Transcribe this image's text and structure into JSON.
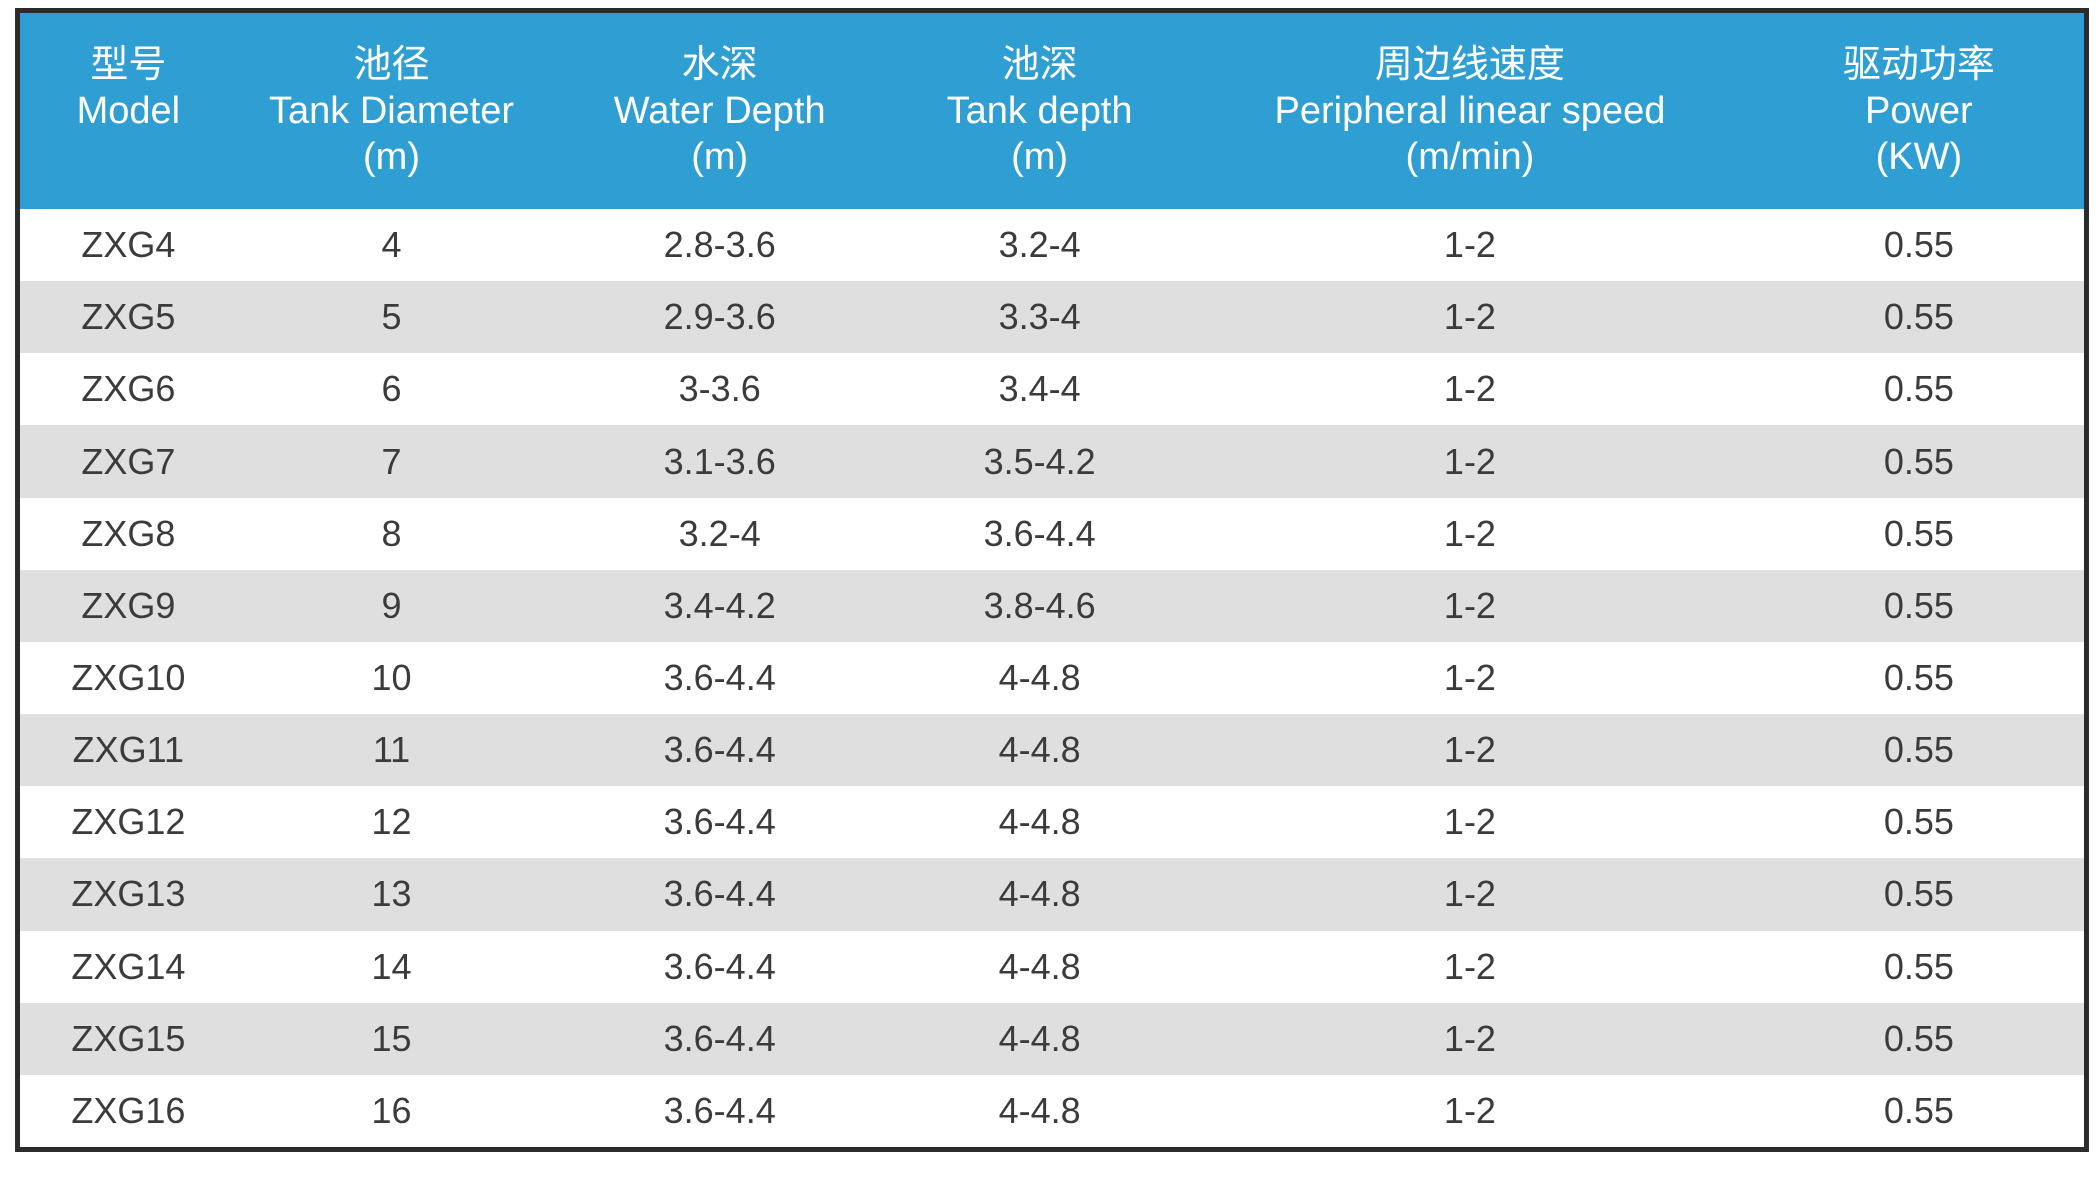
{
  "colors": {
    "page_bg": "#FFFFFF",
    "header_bg": "#2F9FD3",
    "header_text": "#FFFFFF",
    "row_bg": "#FFFFFF",
    "row_alt_bg": "#DFDFDF",
    "body_text": "#3B3B3B",
    "frame_border": "#2B2B2B"
  },
  "table": {
    "columns": [
      {
        "id": "model",
        "zh": "型号",
        "en": "Model",
        "unit": ""
      },
      {
        "id": "tank-diameter",
        "zh": "池径",
        "en": "Tank Diameter",
        "unit": "(m)"
      },
      {
        "id": "water-depth",
        "zh": "水深",
        "en": "Water Depth",
        "unit": "(m)"
      },
      {
        "id": "tank-depth",
        "zh": "池深",
        "en": "Tank depth",
        "unit": "(m)"
      },
      {
        "id": "peripheral-linear-speed",
        "zh": "周边线速度",
        "en": "Peripheral linear speed",
        "unit": "(m/min)"
      },
      {
        "id": "power",
        "zh": "驱动功率",
        "en": "Power",
        "unit": "(KW)"
      }
    ],
    "rows": [
      [
        "ZXG4",
        "4",
        "2.8-3.6",
        "3.2-4",
        "1-2",
        "0.55"
      ],
      [
        "ZXG5",
        "5",
        "2.9-3.6",
        "3.3-4",
        "1-2",
        "0.55"
      ],
      [
        "ZXG6",
        "6",
        "3-3.6",
        "3.4-4",
        "1-2",
        "0.55"
      ],
      [
        "ZXG7",
        "7",
        "3.1-3.6",
        "3.5-4.2",
        "1-2",
        "0.55"
      ],
      [
        "ZXG8",
        "8",
        "3.2-4",
        "3.6-4.4",
        "1-2",
        "0.55"
      ],
      [
        "ZXG9",
        "9",
        "3.4-4.2",
        "3.8-4.6",
        "1-2",
        "0.55"
      ],
      [
        "ZXG10",
        "10",
        "3.6-4.4",
        "4-4.8",
        "1-2",
        "0.55"
      ],
      [
        "ZXG11",
        "11",
        "3.6-4.4",
        "4-4.8",
        "1-2",
        "0.55"
      ],
      [
        "ZXG12",
        "12",
        "3.6-4.4",
        "4-4.8",
        "1-2",
        "0.55"
      ],
      [
        "ZXG13",
        "13",
        "3.6-4.4",
        "4-4.8",
        "1-2",
        "0.55"
      ],
      [
        "ZXG14",
        "14",
        "3.6-4.4",
        "4-4.8",
        "1-2",
        "0.55"
      ],
      [
        "ZXG15",
        "15",
        "3.6-4.4",
        "4-4.8",
        "1-2",
        "0.55"
      ],
      [
        "ZXG16",
        "16",
        "3.6-4.4",
        "4-4.8",
        "1-2",
        "0.55"
      ]
    ]
  }
}
